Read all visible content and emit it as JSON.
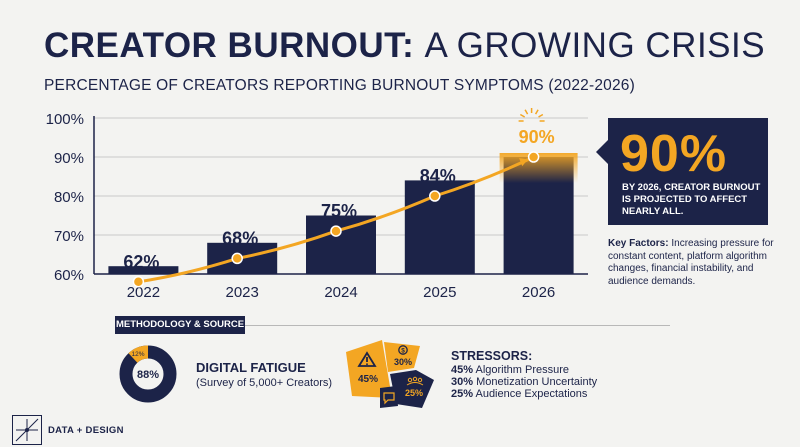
{
  "header": {
    "title_bold": "CREATOR BURNOUT:",
    "title_light": "A GROWING CRISIS",
    "subtitle": "PERCENTAGE OF CREATORS REPORTING BURNOUT SYMPTOMS (2022-2026)"
  },
  "chart_data": {
    "type": "bar",
    "categories": [
      "2022",
      "2023",
      "2024",
      "2025",
      "2026"
    ],
    "values": [
      62,
      68,
      75,
      84,
      90
    ],
    "data_labels": [
      "62%",
      "68%",
      "75%",
      "84%",
      "90%"
    ],
    "y_ticks": [
      "60%",
      "70%",
      "80%",
      "90%",
      "100%"
    ],
    "ylim": [
      60,
      100
    ],
    "trend_line": true,
    "colors": {
      "bar": "#1c2348",
      "line": "#f3a623",
      "highlight_label": "#f3a623"
    }
  },
  "callout": {
    "value": "90%",
    "text": "BY 2026, CREATOR BURNOUT IS PROJECTED TO AFFECT NEARLY ALL."
  },
  "factors": {
    "label": "Key Factors:",
    "text": "Increasing pressure for constant content, platform algorithm changes, financial instability, and audience demands."
  },
  "methodology": {
    "label": "METHODOLOGY & SOURCE",
    "donut": {
      "main_pct": 88,
      "main_label": "88%",
      "other_label": "12%"
    },
    "fatigue_title": "DIGITAL FATIGUE",
    "fatigue_sub": "(Survey of 5,000+ Creators)"
  },
  "stressors": {
    "title": "STRESSORS:",
    "segments": [
      {
        "label": "45%",
        "icon": "warning-icon"
      },
      {
        "label": "30%",
        "icon": "dollar-icon"
      },
      {
        "label": "25%",
        "icon": "people-icon"
      }
    ],
    "chat_icon": "chat-icon",
    "items": [
      {
        "pct": "45%",
        "label": "Algorithm Pressure"
      },
      {
        "pct": "30%",
        "label": "Monetization Uncertainty"
      },
      {
        "pct": "25%",
        "label": "Audience Expectations"
      }
    ]
  },
  "footer": {
    "brand": "DATA + DESIGN",
    "logo_icon": "logo-icon"
  }
}
